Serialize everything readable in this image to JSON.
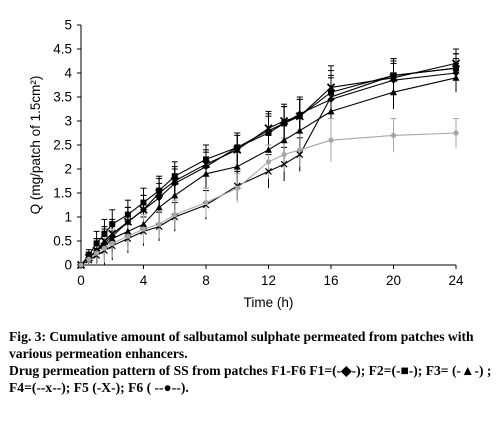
{
  "chart_data": {
    "type": "line",
    "title": "",
    "xlabel": "Time (h)",
    "ylabel": "Q (mg/patch of 1.5cm²)",
    "xlim": [
      0,
      24
    ],
    "ylim": [
      0,
      5
    ],
    "xticks": [
      0,
      4,
      8,
      12,
      16,
      20,
      24
    ],
    "yticks": [
      0,
      0.5,
      1,
      1.5,
      2,
      2.5,
      3,
      3.5,
      4,
      4.5,
      5
    ],
    "ytick_labels": [
      "0",
      "0.5",
      "1",
      "1.5",
      "2",
      "2.5",
      "3",
      "3.5",
      "4",
      "4.5",
      "5"
    ],
    "grid": false,
    "legend": "none",
    "x": [
      0,
      0.5,
      1,
      1.5,
      2,
      3,
      4,
      5,
      6,
      8,
      10,
      12,
      13,
      14,
      16,
      20,
      24
    ],
    "series": [
      {
        "name": "F1",
        "marker": "diamond",
        "values": [
          0,
          0.15,
          0.3,
          0.45,
          0.6,
          0.9,
          1.15,
          1.4,
          1.7,
          2.05,
          2.45,
          2.8,
          2.95,
          3.15,
          3.45,
          3.85,
          4.0
        ]
      },
      {
        "name": "F2",
        "marker": "square",
        "values": [
          0,
          0.2,
          0.45,
          0.65,
          0.85,
          1.05,
          1.3,
          1.55,
          1.85,
          2.2,
          2.45,
          2.75,
          2.95,
          3.1,
          3.6,
          3.95,
          4.1
        ]
      },
      {
        "name": "F3",
        "marker": "triangle",
        "values": [
          0,
          0.15,
          0.3,
          0.4,
          0.55,
          0.7,
          0.85,
          1.2,
          1.45,
          1.9,
          2.05,
          2.4,
          2.6,
          2.8,
          3.2,
          3.6,
          3.9
        ]
      },
      {
        "name": "F4",
        "marker": "x",
        "values": [
          0,
          0.1,
          0.2,
          0.3,
          0.4,
          0.55,
          0.7,
          0.8,
          1.0,
          1.25,
          1.65,
          1.95,
          2.1,
          2.3,
          3.5,
          3.95,
          4.1
        ]
      },
      {
        "name": "F5",
        "marker": "cross",
        "values": [
          0,
          0.15,
          0.3,
          0.5,
          0.65,
          0.9,
          1.15,
          1.5,
          1.75,
          2.1,
          2.4,
          2.85,
          3.0,
          3.1,
          3.7,
          3.9,
          4.2
        ]
      },
      {
        "name": "F6",
        "marker": "circle",
        "color": "#a6a6a6",
        "values": [
          0,
          0.12,
          0.25,
          0.35,
          0.45,
          0.6,
          0.75,
          0.85,
          1.05,
          1.3,
          1.6,
          2.15,
          2.3,
          2.4,
          2.6,
          2.7,
          2.75
        ]
      }
    ],
    "error": [
      0,
      0.12,
      0.25,
      0.3,
      0.3,
      0.3,
      0.3,
      0.3,
      0.3,
      0.3,
      0.3,
      0.35,
      0.35,
      0.35,
      0.45,
      0.35,
      0.3
    ]
  },
  "caption": {
    "line1": "Fig. 3: Cumulative amount of salbutamol sulphate permeated from patches with various permeation enhancers.",
    "line2": "Drug permeation pattern of SS from patches F1-F6 F1=(-◆-); F2=(-■-); F3= (-▲-) ; F4=(--x--);  F5 (-X-);  F6 ( --●--)."
  }
}
